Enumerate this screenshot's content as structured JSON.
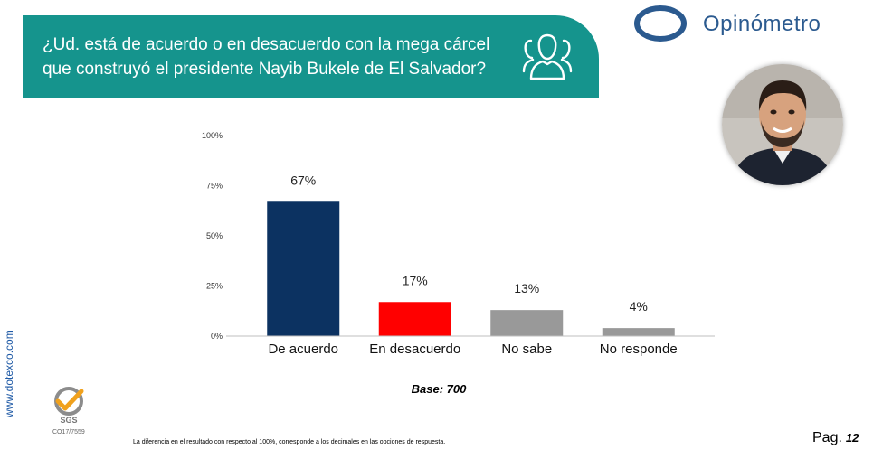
{
  "header": {
    "question": "¿Ud. está de acuerdo o en desacuerdo con la mega cárcel que construyó el presidente Nayib Bukele de El Salvador?",
    "icon": "people-group-icon"
  },
  "brand": {
    "name": "Opinómetro",
    "color": "#2b5a8f",
    "banner_color": "#15948d"
  },
  "chart_data": {
    "type": "bar",
    "categories": [
      "De acuerdo",
      "En desacuerdo",
      "No sabe",
      "No responde"
    ],
    "values": [
      67,
      17,
      13,
      4
    ],
    "data_labels": [
      "67%",
      "17%",
      "13%",
      "4%"
    ],
    "colors": [
      "#0c3261",
      "#ff0000",
      "#999999",
      "#999999"
    ],
    "yticks": [
      "0%",
      "25%",
      "50%",
      "75%",
      "100%"
    ],
    "ylim": [
      0,
      100
    ],
    "grid": false
  },
  "base_label": "Base: 700",
  "footnote": "La diferencia en el resultado con respecto al 100%, corresponde a los decimales en las opciones de respuesta.",
  "side_url": "www.dotexco.com",
  "certification": {
    "mark": "SGS",
    "code": "CO17/7559"
  },
  "page": {
    "label": "Pag.",
    "number": "12"
  }
}
